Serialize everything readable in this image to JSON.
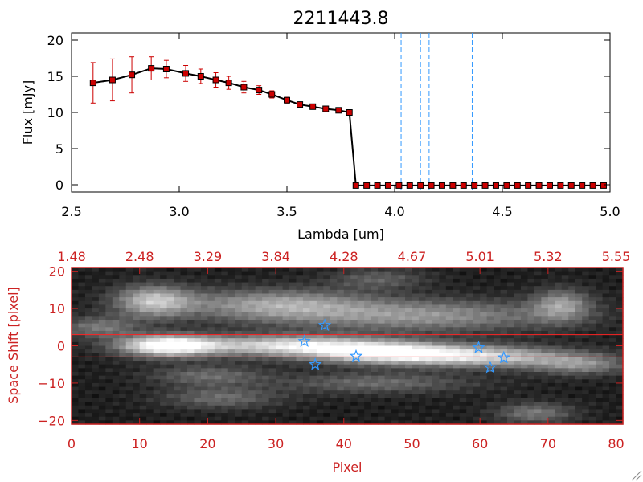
{
  "chart_data": [
    {
      "type": "line",
      "title": "2211443.8",
      "xlabel": "Lambda [um]",
      "ylabel": "Flux [mJy]",
      "xlim": [
        2.5,
        5.0
      ],
      "ylim": [
        -1,
        21
      ],
      "x_ticks": [
        2.5,
        3.0,
        3.5,
        4.0,
        4.5,
        5.0
      ],
      "x_tick_labels": [
        "2.5",
        "3.0",
        "3.5",
        "4.0",
        "4.5",
        "5.0"
      ],
      "y_ticks": [
        0,
        5,
        10,
        15,
        20
      ],
      "y_tick_labels": [
        "0",
        "5",
        "10",
        "15",
        "20"
      ],
      "grid": false,
      "line_color": "#000000",
      "marker_color": "#cc0000",
      "errorbar_color": "#cc0000",
      "vline_color": "#3399ff",
      "vlines": [
        4.03,
        4.12,
        4.16,
        4.36
      ],
      "series": [
        {
          "x": [
            2.6,
            2.69,
            2.78,
            2.87,
            2.94,
            3.03,
            3.1,
            3.17,
            3.23,
            3.3,
            3.37,
            3.43,
            3.5,
            3.56,
            3.62,
            3.68,
            3.74,
            3.79,
            3.82,
            3.87,
            3.92,
            3.97,
            4.02,
            4.07,
            4.12,
            4.17,
            4.22,
            4.27,
            4.32,
            4.37,
            4.42,
            4.47,
            4.52,
            4.57,
            4.62,
            4.67,
            4.72,
            4.77,
            4.82,
            4.87,
            4.92,
            4.97
          ],
          "y": [
            14.1,
            14.5,
            15.2,
            16.1,
            16.0,
            15.4,
            15.0,
            14.5,
            14.1,
            13.5,
            13.1,
            12.5,
            11.7,
            11.1,
            10.8,
            10.5,
            10.3,
            10.0,
            -0.1,
            -0.1,
            -0.1,
            -0.1,
            -0.1,
            -0.1,
            -0.1,
            -0.1,
            -0.1,
            -0.1,
            -0.1,
            -0.1,
            -0.1,
            -0.1,
            -0.1,
            -0.1,
            -0.1,
            -0.1,
            -0.1,
            -0.1,
            -0.1,
            -0.1,
            -0.1,
            -0.1
          ],
          "yerr": [
            2.8,
            2.9,
            2.5,
            1.6,
            1.2,
            1.1,
            1.0,
            1.0,
            0.9,
            0.8,
            0.6,
            0.5,
            0.4,
            0.3,
            0.3,
            0.3,
            0.3,
            0.3,
            0,
            0,
            0,
            0,
            0,
            0,
            0,
            0,
            0,
            0,
            0,
            0,
            0,
            0,
            0,
            0,
            0,
            0,
            0,
            0,
            0,
            0,
            0,
            0
          ]
        }
      ]
    },
    {
      "type": "heatmap",
      "xlabel": "Pixel",
      "ylabel": "Space Shift [pixel]",
      "xlim": [
        0,
        81
      ],
      "ylim": [
        -21,
        21
      ],
      "x_ticks": [
        0,
        10,
        20,
        30,
        40,
        50,
        60,
        70,
        80
      ],
      "x_tick_labels": [
        "0",
        "10",
        "20",
        "30",
        "40",
        "50",
        "60",
        "70",
        "80"
      ],
      "y_ticks": [
        -20,
        -10,
        0,
        10,
        20
      ],
      "y_tick_labels": [
        "−20",
        "−10",
        "0",
        "10",
        "20"
      ],
      "top_axis_label_positions": [
        0,
        10,
        20,
        30,
        40,
        50,
        60,
        70,
        80
      ],
      "top_axis_labels": [
        "1.48",
        "2.48",
        "3.29",
        "3.84",
        "4.28",
        "4.67",
        "5.01",
        "5.32",
        "5.55"
      ],
      "axis_color": "#cc2222",
      "hlines": [
        3,
        -3
      ],
      "hline_color": "#ff2222",
      "star_color": "#3399ff",
      "stars": [
        {
          "x": 37.2,
          "y": 5.5
        },
        {
          "x": 34.2,
          "y": 1.2
        },
        {
          "x": 35.8,
          "y": -5.0
        },
        {
          "x": 41.8,
          "y": -2.8
        },
        {
          "x": 59.8,
          "y": -0.5
        },
        {
          "x": 61.5,
          "y": -5.8
        },
        {
          "x": 63.5,
          "y": -3.2
        }
      ],
      "bright_features": [
        {
          "x": 12,
          "y": 12,
          "sx": 4,
          "sy": 3,
          "a": 0.6
        },
        {
          "x": 30,
          "y": 11,
          "sx": 10,
          "sy": 3,
          "a": 0.5
        },
        {
          "x": 52,
          "y": 8,
          "sx": 14,
          "sy": 3,
          "a": 0.45
        },
        {
          "x": 72,
          "y": 11,
          "sx": 3,
          "sy": 3,
          "a": 0.45
        },
        {
          "x": 14,
          "y": 0,
          "sx": 5,
          "sy": 2,
          "a": 0.95
        },
        {
          "x": 32,
          "y": 0,
          "sx": 10,
          "sy": 2,
          "a": 0.75
        },
        {
          "x": 47,
          "y": -2,
          "sx": 8,
          "sy": 2,
          "a": 0.85
        },
        {
          "x": 62,
          "y": -3,
          "sx": 8,
          "sy": 2,
          "a": 0.6
        },
        {
          "x": 75,
          "y": -5,
          "sx": 5,
          "sy": 2,
          "a": 0.4
        },
        {
          "x": 4,
          "y": 5,
          "sx": 4,
          "sy": 2,
          "a": 0.35
        },
        {
          "x": 20,
          "y": -8,
          "sx": 6,
          "sy": 2,
          "a": 0.3
        },
        {
          "x": 45,
          "y": -10,
          "sx": 10,
          "sy": 2,
          "a": 0.3
        },
        {
          "x": 22,
          "y": -14,
          "sx": 6,
          "sy": 2,
          "a": 0.3
        },
        {
          "x": 68,
          "y": -18,
          "sx": 4,
          "sy": 2,
          "a": 0.35
        },
        {
          "x": 45,
          "y": 18,
          "sx": 5,
          "sy": 2,
          "a": 0.25
        }
      ]
    }
  ]
}
